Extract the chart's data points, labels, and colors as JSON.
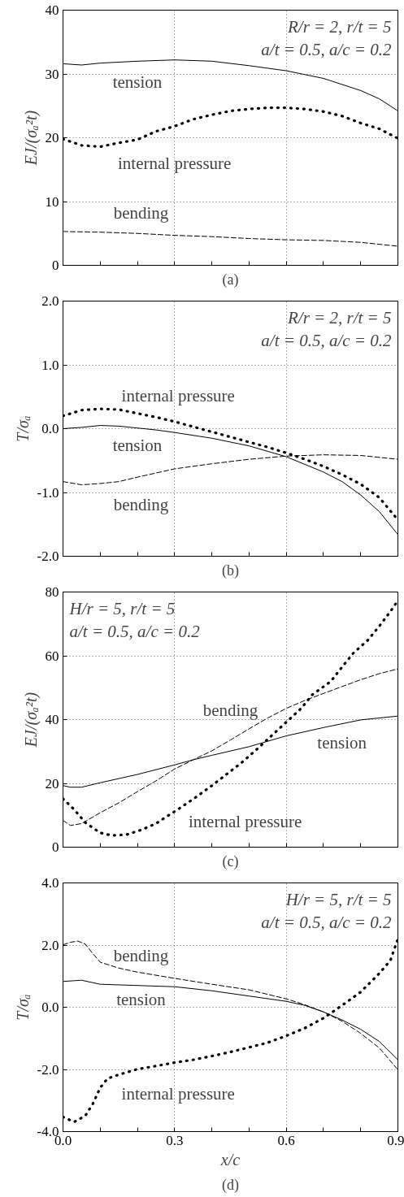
{
  "chart_data": [
    {
      "type": "line",
      "title": "(a)",
      "ylabel": "EJ/(σₐ²t)",
      "xlim": [
        0,
        0.9
      ],
      "ylim": [
        0,
        40
      ],
      "yticks": [
        0,
        10,
        20,
        30,
        40
      ],
      "xticks": [
        {
          "value": 0,
          "label": null
        },
        {
          "value": 0.1,
          "label": null
        },
        {
          "value": 0.2,
          "label": null
        },
        {
          "value": 0.3,
          "label": null
        },
        {
          "value": 0.4,
          "label": null
        },
        {
          "value": 0.5,
          "label": null
        },
        {
          "value": 0.6,
          "label": null
        },
        {
          "value": 0.7,
          "label": null
        },
        {
          "value": 0.8,
          "label": null
        },
        {
          "value": 0.9,
          "label": null
        }
      ],
      "grid": true,
      "tick_labels": "y",
      "annotations": [
        "R/r = 2, r/t = 5",
        "a/t = 0.5, a/c = 0.2"
      ],
      "series": [
        {
          "name": "tension",
          "color": "#000000",
          "line_style": "solid",
          "x": [
            0,
            0.05,
            0.1,
            0.2,
            0.3,
            0.4,
            0.5,
            0.6,
            0.7,
            0.8,
            0.85,
            0.9
          ],
          "values": [
            31.6,
            31.4,
            31.7,
            32.0,
            32.2,
            32.0,
            31.3,
            30.5,
            29.3,
            27.4,
            26.1,
            24.2
          ]
        },
        {
          "name": "internal pressure",
          "color": "#000000",
          "line_style": "dotted",
          "x": [
            0,
            0.05,
            0.1,
            0.15,
            0.2,
            0.25,
            0.3,
            0.35,
            0.4,
            0.45,
            0.5,
            0.55,
            0.6,
            0.65,
            0.7,
            0.75,
            0.8,
            0.85,
            0.9
          ],
          "values": [
            19.8,
            18.8,
            18.6,
            19.2,
            19.7,
            21.0,
            21.8,
            22.9,
            23.6,
            24.2,
            24.5,
            24.7,
            24.7,
            24.5,
            24.1,
            23.4,
            22.3,
            21.4,
            19.9
          ]
        },
        {
          "name": "bending",
          "color": "#000000",
          "line_style": "dashed",
          "x": [
            0,
            0.1,
            0.2,
            0.3,
            0.4,
            0.5,
            0.6,
            0.7,
            0.8,
            0.9
          ],
          "values": [
            5.3,
            5.2,
            5.0,
            4.7,
            4.5,
            4.2,
            4.0,
            3.9,
            3.6,
            3.0
          ]
        }
      ]
    },
    {
      "type": "line",
      "title": "(b)",
      "ylabel": "T/σₐ",
      "xlim": [
        0,
        0.9
      ],
      "ylim": [
        -2,
        2
      ],
      "yticks": [
        {
          "value": -2,
          "label": "-2.0"
        },
        {
          "value": -1,
          "label": "-1.0"
        },
        {
          "value": 0,
          "label": "0.0"
        },
        {
          "value": 1,
          "label": "1.0"
        },
        {
          "value": 2,
          "label": "2.0"
        }
      ],
      "xticks": [
        {
          "value": 0,
          "label": null
        },
        {
          "value": 0.1,
          "label": null
        },
        {
          "value": 0.2,
          "label": null
        },
        {
          "value": 0.3,
          "label": null
        },
        {
          "value": 0.4,
          "label": null
        },
        {
          "value": 0.5,
          "label": null
        },
        {
          "value": 0.6,
          "label": null
        },
        {
          "value": 0.7,
          "label": null
        },
        {
          "value": 0.8,
          "label": null
        },
        {
          "value": 0.9,
          "label": null
        }
      ],
      "grid": true,
      "tick_labels": "y",
      "annotations": [
        "R/r = 2, r/t = 5",
        "a/t = 0.5, a/c = 0.2"
      ],
      "series": [
        {
          "name": "tension",
          "color": "#000000",
          "line_style": "solid",
          "x": [
            0,
            0.05,
            0.1,
            0.15,
            0.2,
            0.25,
            0.3,
            0.4,
            0.5,
            0.6,
            0.7,
            0.75,
            0.8,
            0.85,
            0.9
          ],
          "values": [
            0.0,
            0.02,
            0.05,
            0.04,
            0.01,
            -0.02,
            -0.06,
            -0.15,
            -0.27,
            -0.44,
            -0.68,
            -0.83,
            -1.04,
            -1.3,
            -1.66
          ]
        },
        {
          "name": "internal pressure",
          "color": "#000000",
          "line_style": "dotted",
          "x": [
            0,
            0.05,
            0.1,
            0.15,
            0.2,
            0.25,
            0.3,
            0.35,
            0.4,
            0.45,
            0.5,
            0.55,
            0.6,
            0.65,
            0.7,
            0.75,
            0.8,
            0.85,
            0.9
          ],
          "values": [
            0.2,
            0.29,
            0.31,
            0.3,
            0.24,
            0.18,
            0.11,
            0.03,
            -0.05,
            -0.13,
            -0.21,
            -0.29,
            -0.38,
            -0.48,
            -0.59,
            -0.72,
            -0.87,
            -1.08,
            -1.43
          ]
        },
        {
          "name": "bending",
          "color": "#000000",
          "line_style": "dashed",
          "x": [
            0,
            0.05,
            0.1,
            0.15,
            0.2,
            0.3,
            0.4,
            0.5,
            0.6,
            0.7,
            0.8,
            0.9
          ],
          "values": [
            -0.83,
            -0.88,
            -0.86,
            -0.83,
            -0.76,
            -0.63,
            -0.55,
            -0.48,
            -0.43,
            -0.41,
            -0.42,
            -0.48
          ]
        }
      ]
    },
    {
      "type": "line",
      "title": "(c)",
      "ylabel": "EJ/(σₐ²t)",
      "xlim": [
        0,
        0.9
      ],
      "ylim": [
        0,
        80
      ],
      "yticks": [
        0,
        20,
        40,
        60,
        80
      ],
      "xticks": [
        {
          "value": 0,
          "label": null
        },
        {
          "value": 0.1,
          "label": null
        },
        {
          "value": 0.2,
          "label": null
        },
        {
          "value": 0.3,
          "label": null
        },
        {
          "value": 0.4,
          "label": null
        },
        {
          "value": 0.5,
          "label": null
        },
        {
          "value": 0.6,
          "label": null
        },
        {
          "value": 0.7,
          "label": null
        },
        {
          "value": 0.8,
          "label": null
        },
        {
          "value": 0.9,
          "label": null
        }
      ],
      "grid": true,
      "tick_labels": "y",
      "annotations": [
        "H/r = 5, r/t = 5",
        "a/t = 0.5, a/c = 0.2"
      ],
      "series": [
        {
          "name": "tension",
          "color": "#000000",
          "line_style": "solid",
          "x": [
            0,
            0.02,
            0.05,
            0.1,
            0.2,
            0.3,
            0.35,
            0.4,
            0.5,
            0.6,
            0.7,
            0.8,
            0.9
          ],
          "values": [
            19.3,
            18.8,
            18.8,
            20.2,
            22.8,
            25.8,
            27.4,
            28.8,
            31.5,
            34.9,
            37.5,
            39.9,
            41.1
          ]
        },
        {
          "name": "bending",
          "color": "#000000",
          "line_style": "dashed",
          "x": [
            0,
            0.02,
            0.05,
            0.1,
            0.15,
            0.2,
            0.25,
            0.3,
            0.35,
            0.4,
            0.45,
            0.5,
            0.55,
            0.6,
            0.65,
            0.7,
            0.8,
            0.85,
            0.9
          ],
          "values": [
            8.4,
            6.8,
            7.4,
            10.8,
            13.9,
            17.4,
            20.8,
            24.5,
            27.4,
            30.2,
            33.6,
            37.1,
            40.5,
            43.5,
            46.0,
            48.2,
            52.5,
            54.4,
            55.9
          ]
        },
        {
          "name": "internal pressure",
          "color": "#000000",
          "line_style": "dotted",
          "x": [
            0,
            0.03,
            0.06,
            0.1,
            0.13,
            0.17,
            0.21,
            0.25,
            0.28,
            0.32,
            0.36,
            0.4,
            0.44,
            0.48,
            0.52,
            0.56,
            0.6,
            0.64,
            0.67,
            0.72,
            0.75,
            0.78,
            0.82,
            0.85,
            0.88,
            0.9
          ],
          "values": [
            15.2,
            11.8,
            7.7,
            4.5,
            3.7,
            3.9,
            5.4,
            7.4,
            9.7,
            12.7,
            15.9,
            19.3,
            22.9,
            26.5,
            30.6,
            34.9,
            39.2,
            43.5,
            47.8,
            52.0,
            56.5,
            60.8,
            65.0,
            69.3,
            73.9,
            77.3
          ]
        }
      ]
    },
    {
      "type": "line",
      "title": "(d)",
      "xlabel": "x/c",
      "ylabel": "T/σₐ",
      "xlim": [
        0,
        0.9
      ],
      "ylim": [
        -4,
        4
      ],
      "yticks": [
        {
          "value": -4,
          "label": "-4.0"
        },
        {
          "value": -2,
          "label": "-2.0"
        },
        {
          "value": 0,
          "label": "0.0"
        },
        {
          "value": 2,
          "label": "2.0"
        },
        {
          "value": 4,
          "label": "4.0"
        }
      ],
      "xticks": [
        {
          "value": 0,
          "label": "0.0"
        },
        {
          "value": 0.1,
          "label": null
        },
        {
          "value": 0.2,
          "label": null
        },
        {
          "value": 0.3,
          "label": "0.3"
        },
        {
          "value": 0.4,
          "label": null
        },
        {
          "value": 0.5,
          "label": null
        },
        {
          "value": 0.6,
          "label": "0.6"
        },
        {
          "value": 0.7,
          "label": null
        },
        {
          "value": 0.8,
          "label": null
        },
        {
          "value": 0.9,
          "label": "0.9"
        }
      ],
      "grid": true,
      "annotations": [
        "H/r = 5, r/t = 5",
        "a/t = 0.5, a/c = 0.2"
      ],
      "series": [
        {
          "name": "bending",
          "color": "#000000",
          "line_style": "dashed",
          "x": [
            0,
            0.02,
            0.04,
            0.06,
            0.08,
            0.1,
            0.15,
            0.2,
            0.3,
            0.4,
            0.5,
            0.6,
            0.65,
            0.7,
            0.75,
            0.8,
            0.85,
            0.9
          ],
          "values": [
            2.01,
            2.09,
            2.13,
            2.03,
            1.73,
            1.45,
            1.26,
            1.13,
            0.93,
            0.74,
            0.56,
            0.27,
            0.08,
            -0.15,
            -0.45,
            -0.84,
            -1.31,
            -2.01
          ]
        },
        {
          "name": "tension",
          "color": "#000000",
          "line_style": "solid",
          "x": [
            0,
            0.05,
            0.1,
            0.2,
            0.3,
            0.4,
            0.5,
            0.6,
            0.65,
            0.7,
            0.75,
            0.8,
            0.85,
            0.9
          ],
          "values": [
            0.83,
            0.87,
            0.74,
            0.7,
            0.66,
            0.53,
            0.36,
            0.19,
            0.06,
            -0.15,
            -0.41,
            -0.71,
            -1.1,
            -1.69
          ]
        },
        {
          "name": "internal pressure",
          "color": "#000000",
          "line_style": "dotted",
          "x": [
            0,
            0.03,
            0.06,
            0.08,
            0.1,
            0.12,
            0.15,
            0.2,
            0.25,
            0.3,
            0.35,
            0.4,
            0.45,
            0.5,
            0.55,
            0.6,
            0.65,
            0.7,
            0.75,
            0.8,
            0.85,
            0.88,
            0.9
          ],
          "values": [
            -3.53,
            -3.69,
            -3.49,
            -3.11,
            -2.59,
            -2.29,
            -2.17,
            -1.99,
            -1.89,
            -1.78,
            -1.69,
            -1.57,
            -1.44,
            -1.29,
            -1.14,
            -0.92,
            -0.67,
            -0.35,
            0.06,
            0.49,
            1.09,
            1.51,
            2.2
          ]
        }
      ]
    }
  ]
}
